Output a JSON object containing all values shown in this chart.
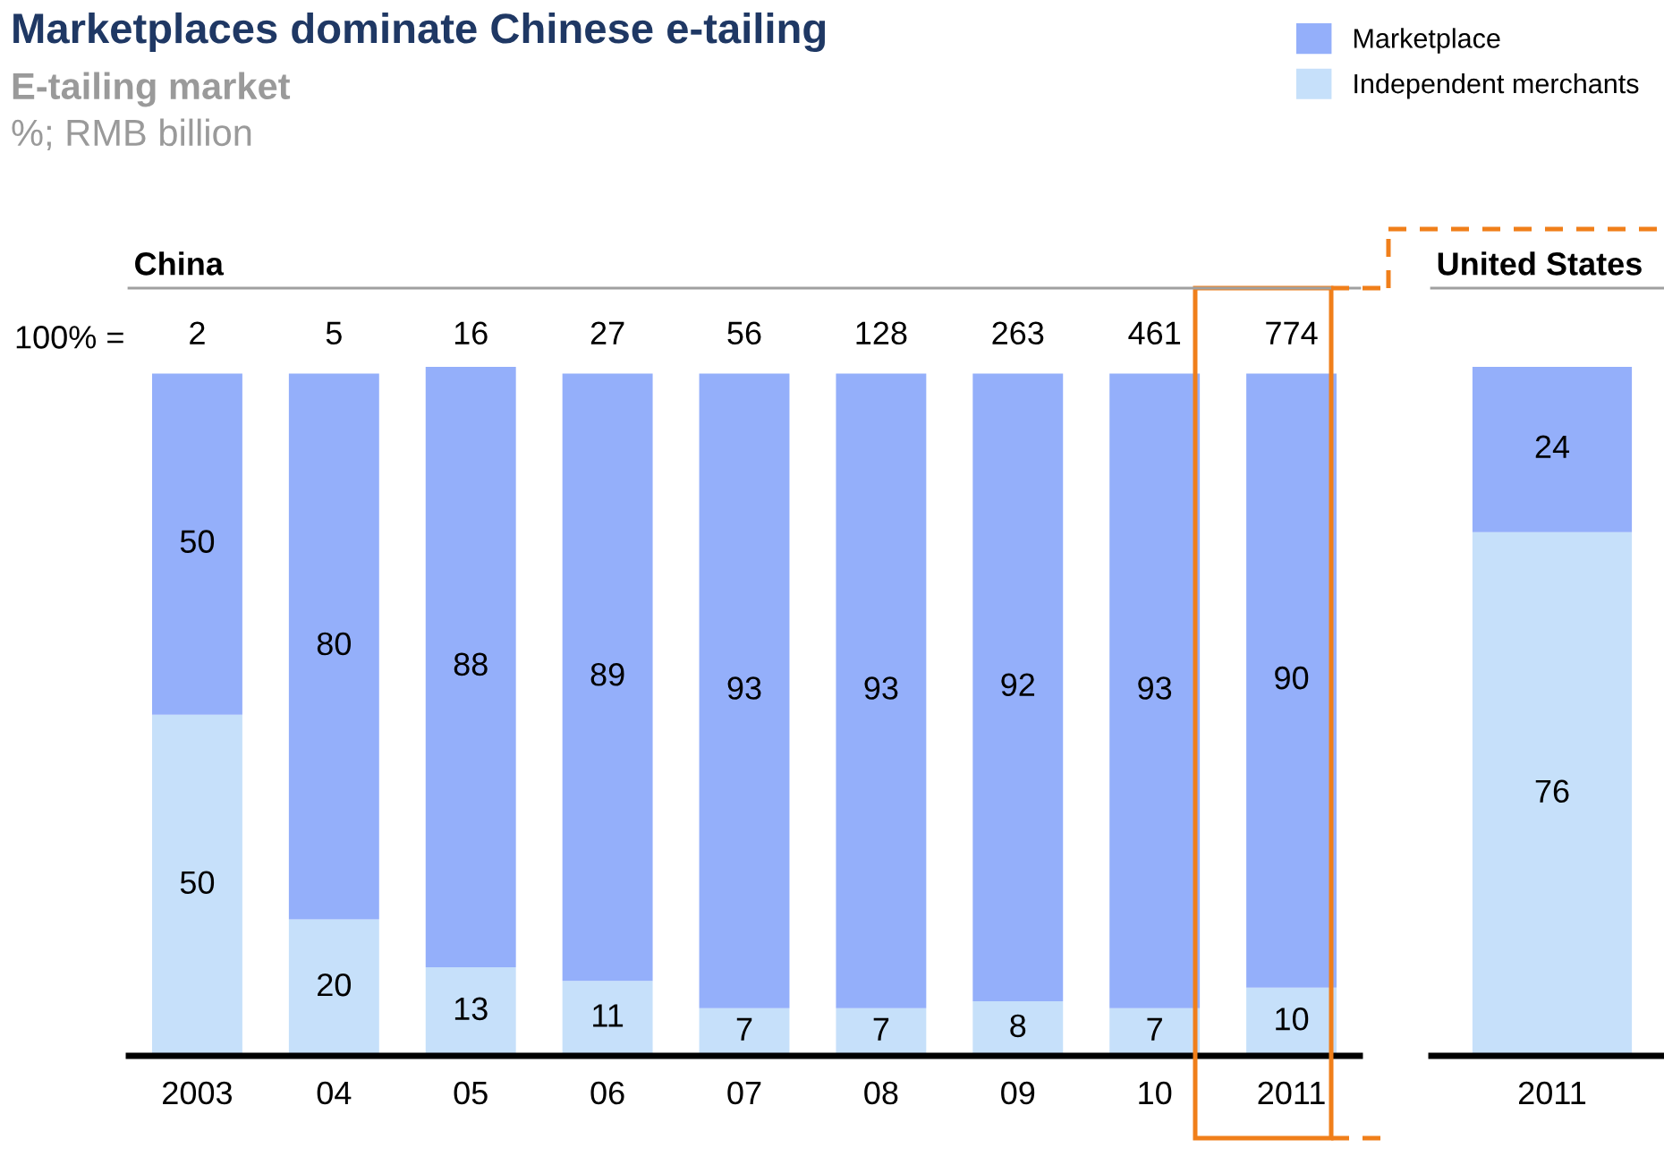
{
  "chart_data": [
    {
      "type": "bar",
      "stacked": true,
      "data_labels": true,
      "title": "China",
      "legend": "top right",
      "categories": [
        "2003",
        "04",
        "05",
        "06",
        "07",
        "08",
        "09",
        "10",
        "2011"
      ],
      "series": [
        {
          "name": "Independent merchants",
          "color": "#c6e0fa",
          "values": [
            50,
            20,
            13,
            11,
            7,
            7,
            8,
            7,
            10
          ]
        },
        {
          "name": "Marketplace",
          "color": "#94affa",
          "values": [
            50,
            80,
            88,
            89,
            93,
            93,
            92,
            93,
            90
          ]
        }
      ],
      "annotations": [
        "Marketplaces dominate Chinese e-tailing",
        "E-tailing market",
        "%; RMB billion",
        "100% =",
        "2",
        "5",
        "16",
        "27",
        "56",
        "128",
        "263",
        "461",
        "774"
      ]
    },
    {
      "type": "bar",
      "stacked": true,
      "data_labels": true,
      "title": "United States",
      "categories": [
        "2011"
      ],
      "series": [
        {
          "color": "#c6e0fa",
          "values": [
            76
          ]
        },
        {
          "color": "#94affa",
          "values": [
            24
          ]
        }
      ]
    }
  ]
}
